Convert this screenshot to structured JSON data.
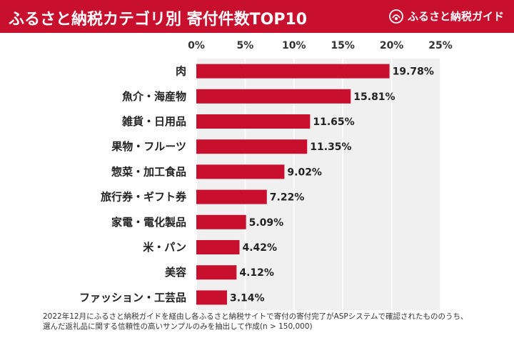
{
  "header": {
    "title": "ふるさと納税カテゴリ別 寄付件数TOP10",
    "brand": "ふるさと納税ガイド"
  },
  "colors": {
    "header_bg": "#c8102e",
    "bar": "#c8102e",
    "plot_bg": "#f0f0f0",
    "grid": "#ffffff"
  },
  "chart_data": {
    "type": "bar",
    "orientation": "horizontal",
    "categories": [
      "肉",
      "魚介・海産物",
      "雑貨・日用品",
      "果物・フルーツ",
      "惣菜・加工食品",
      "旅行券・ギフト券",
      "家電・電化製品",
      "米・パン",
      "美容",
      "ファッション・工芸品"
    ],
    "values": [
      19.78,
      15.81,
      11.65,
      11.35,
      9.02,
      7.22,
      5.09,
      4.42,
      4.12,
      3.14
    ],
    "value_labels": [
      "19.78%",
      "15.81%",
      "11.65%",
      "11.35%",
      "9.02%",
      "7.22%",
      "5.09%",
      "4.42%",
      "4.12%",
      "3.14%"
    ],
    "x_ticks": [
      "0%",
      "5%",
      "10%",
      "15%",
      "20%",
      "25%"
    ],
    "xlim": [
      0,
      25
    ],
    "axis_position": "top",
    "grid": true
  },
  "footnote": {
    "line1": "2022年12月にふるさと納税ガイドを経由し各ふるさと納税サイトで寄付の寄付完了がASPシステムで確認されたもののうち、",
    "line2": "選んだ返礼品に関する信頼性の高いサンプルのみを抽出して作成(n > 150,000)"
  }
}
